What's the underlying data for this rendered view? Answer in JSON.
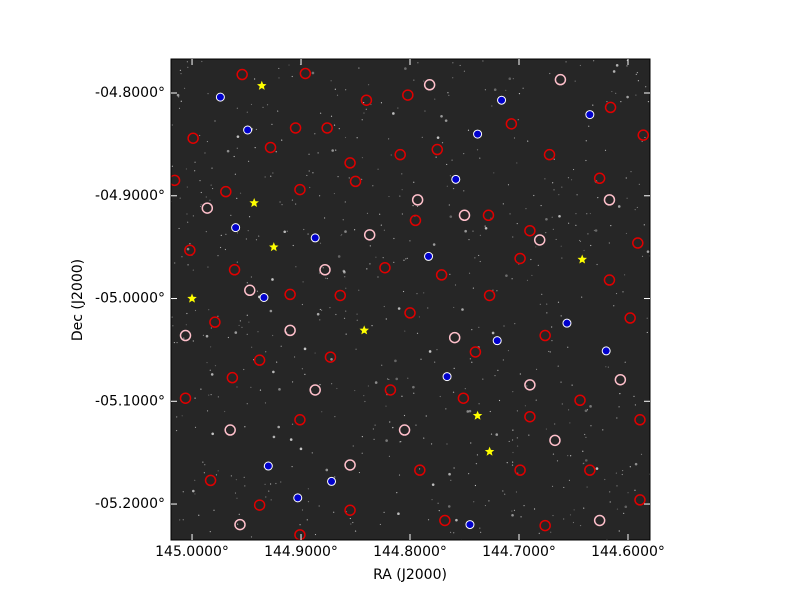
{
  "chart_data": {
    "type": "scatter",
    "xlabel": "RA (J2000)",
    "ylabel": "Dec (J2000)",
    "xlim": [
      145.0193,
      144.5798
    ],
    "ylim": [
      -5.235,
      -4.7669
    ],
    "xticks": [
      {
        "value": 145.0,
        "label": "145.0000°"
      },
      {
        "value": 144.9,
        "label": "144.9000°"
      },
      {
        "value": 144.8,
        "label": "144.8000°"
      },
      {
        "value": 144.7,
        "label": "144.7000°"
      },
      {
        "value": 144.6,
        "label": "144.6000°"
      }
    ],
    "yticks": [
      {
        "value": -4.8,
        "label": "-04.8000°"
      },
      {
        "value": -4.9,
        "label": "-04.9000°"
      },
      {
        "value": -5.0,
        "label": "-05.0000°"
      },
      {
        "value": -5.1,
        "label": "-05.1000°"
      },
      {
        "value": -5.2,
        "label": "-05.2000°"
      }
    ],
    "series": [
      {
        "color": "#e00000",
        "marker": "circle",
        "x": [
          144.954,
          144.896,
          144.84,
          144.802,
          144.905,
          144.876,
          144.999,
          144.928,
          144.855,
          144.809,
          144.775,
          144.707,
          144.672,
          144.616,
          144.586,
          145.016,
          144.969,
          144.901,
          144.85,
          144.795,
          144.728,
          144.69,
          144.626,
          144.591,
          145.002,
          144.961,
          144.91,
          144.864,
          144.823,
          144.771,
          144.727,
          144.699,
          144.617,
          144.979,
          144.938,
          144.873,
          144.8,
          144.74,
          144.676,
          144.598,
          145.006,
          144.963,
          144.901,
          144.818,
          144.751,
          144.69,
          144.644,
          144.589,
          144.983,
          144.938,
          144.855,
          144.791,
          144.699,
          144.635,
          144.589,
          144.901,
          144.768,
          144.676
        ],
        "values": [
          -4.782,
          -4.781,
          -4.807,
          -4.802,
          -4.834,
          -4.834,
          -4.844,
          -4.853,
          -4.868,
          -4.86,
          -4.855,
          -4.83,
          -4.86,
          -4.814,
          -4.841,
          -4.885,
          -4.896,
          -4.894,
          -4.886,
          -4.924,
          -4.919,
          -4.934,
          -4.883,
          -4.946,
          -4.953,
          -4.972,
          -4.996,
          -4.997,
          -4.97,
          -4.977,
          -4.997,
          -4.961,
          -4.982,
          -5.023,
          -5.06,
          -5.057,
          -5.014,
          -5.052,
          -5.036,
          -5.019,
          -5.097,
          -5.077,
          -5.118,
          -5.089,
          -5.097,
          -5.115,
          -5.099,
          -5.118,
          -5.177,
          -5.201,
          -5.206,
          -5.167,
          -5.167,
          -5.167,
          -5.196,
          -5.23,
          -5.216,
          -5.221
        ]
      },
      {
        "color": "#ffc0cb",
        "marker": "circle",
        "x": [
          144.986,
          144.947,
          144.878,
          144.837,
          144.793,
          144.75,
          144.681,
          144.617,
          145.006,
          144.91,
          144.759,
          144.69,
          144.607,
          144.965,
          144.887,
          144.805,
          144.667,
          144.855,
          144.956,
          144.626,
          144.782,
          144.662
        ],
        "values": [
          -4.912,
          -4.992,
          -4.972,
          -4.938,
          -4.904,
          -4.919,
          -4.943,
          -4.904,
          -5.036,
          -5.031,
          -5.038,
          -5.084,
          -5.079,
          -5.128,
          -5.089,
          -5.128,
          -5.138,
          -5.162,
          -5.22,
          -5.216,
          -4.792,
          -4.787
        ]
      },
      {
        "color": "#0000cc",
        "marker": "dot",
        "x": [
          144.974,
          144.949,
          144.758,
          144.738,
          144.716,
          144.635,
          144.96,
          144.887,
          144.783,
          144.934,
          144.656,
          144.72,
          144.766,
          144.93,
          144.903,
          144.872,
          144.745,
          144.62
        ],
        "values": [
          -4.804,
          -4.836,
          -4.884,
          -4.84,
          -4.807,
          -4.821,
          -4.931,
          -4.941,
          -4.959,
          -4.999,
          -5.024,
          -5.041,
          -5.076,
          -5.163,
          -5.194,
          -5.178,
          -5.22,
          -5.051
        ]
      },
      {
        "color": "#ffff00",
        "marker": "star",
        "x": [
          144.936,
          144.943,
          144.925,
          145.0,
          144.842,
          144.642,
          144.738,
          144.727
        ],
        "values": [
          -4.793,
          -4.907,
          -4.95,
          -5.0,
          -5.031,
          -4.962,
          -5.114,
          -5.149
        ]
      }
    ]
  }
}
